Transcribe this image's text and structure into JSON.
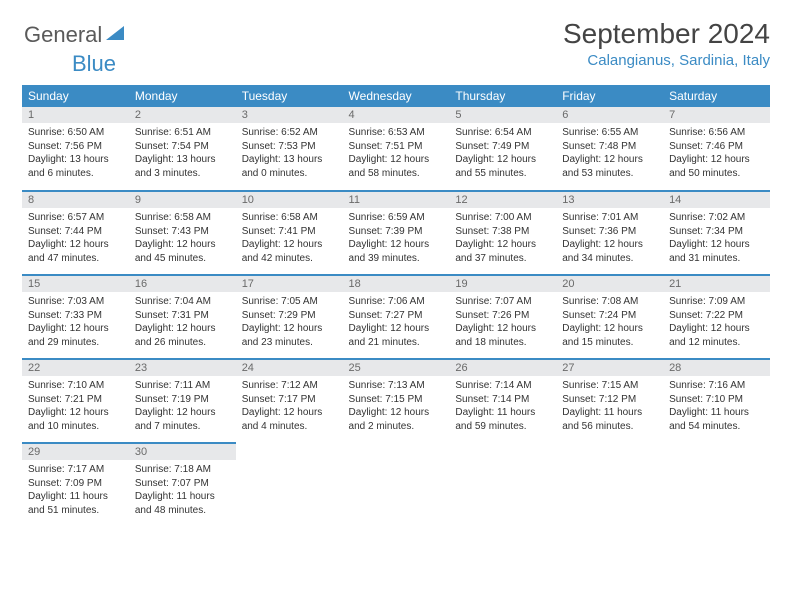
{
  "brand": {
    "general": "General",
    "blue": "Blue"
  },
  "title": "September 2024",
  "location": "Calangianus, Sardinia, Italy",
  "weekdays": [
    "Sunday",
    "Monday",
    "Tuesday",
    "Wednesday",
    "Thursday",
    "Friday",
    "Saturday"
  ],
  "colors": {
    "header_bg": "#3b8bc4",
    "header_text": "#ffffff",
    "daynum_bg": "#e7e8ea",
    "daynum_text": "#6a6a6a",
    "rule": "#3b8bc4",
    "body_text": "#333333",
    "title_text": "#444444",
    "location_text": "#3b8bc4"
  },
  "typography": {
    "title_fontsize": 28,
    "location_fontsize": 15,
    "weekday_fontsize": 12,
    "daynum_fontsize": 11,
    "cell_fontsize": 10
  },
  "days": [
    {
      "n": 1,
      "sunrise": "6:50 AM",
      "sunset": "7:56 PM",
      "daylight": "13 hours and 6 minutes."
    },
    {
      "n": 2,
      "sunrise": "6:51 AM",
      "sunset": "7:54 PM",
      "daylight": "13 hours and 3 minutes."
    },
    {
      "n": 3,
      "sunrise": "6:52 AM",
      "sunset": "7:53 PM",
      "daylight": "13 hours and 0 minutes."
    },
    {
      "n": 4,
      "sunrise": "6:53 AM",
      "sunset": "7:51 PM",
      "daylight": "12 hours and 58 minutes."
    },
    {
      "n": 5,
      "sunrise": "6:54 AM",
      "sunset": "7:49 PM",
      "daylight": "12 hours and 55 minutes."
    },
    {
      "n": 6,
      "sunrise": "6:55 AM",
      "sunset": "7:48 PM",
      "daylight": "12 hours and 53 minutes."
    },
    {
      "n": 7,
      "sunrise": "6:56 AM",
      "sunset": "7:46 PM",
      "daylight": "12 hours and 50 minutes."
    },
    {
      "n": 8,
      "sunrise": "6:57 AM",
      "sunset": "7:44 PM",
      "daylight": "12 hours and 47 minutes."
    },
    {
      "n": 9,
      "sunrise": "6:58 AM",
      "sunset": "7:43 PM",
      "daylight": "12 hours and 45 minutes."
    },
    {
      "n": 10,
      "sunrise": "6:58 AM",
      "sunset": "7:41 PM",
      "daylight": "12 hours and 42 minutes."
    },
    {
      "n": 11,
      "sunrise": "6:59 AM",
      "sunset": "7:39 PM",
      "daylight": "12 hours and 39 minutes."
    },
    {
      "n": 12,
      "sunrise": "7:00 AM",
      "sunset": "7:38 PM",
      "daylight": "12 hours and 37 minutes."
    },
    {
      "n": 13,
      "sunrise": "7:01 AM",
      "sunset": "7:36 PM",
      "daylight": "12 hours and 34 minutes."
    },
    {
      "n": 14,
      "sunrise": "7:02 AM",
      "sunset": "7:34 PM",
      "daylight": "12 hours and 31 minutes."
    },
    {
      "n": 15,
      "sunrise": "7:03 AM",
      "sunset": "7:33 PM",
      "daylight": "12 hours and 29 minutes."
    },
    {
      "n": 16,
      "sunrise": "7:04 AM",
      "sunset": "7:31 PM",
      "daylight": "12 hours and 26 minutes."
    },
    {
      "n": 17,
      "sunrise": "7:05 AM",
      "sunset": "7:29 PM",
      "daylight": "12 hours and 23 minutes."
    },
    {
      "n": 18,
      "sunrise": "7:06 AM",
      "sunset": "7:27 PM",
      "daylight": "12 hours and 21 minutes."
    },
    {
      "n": 19,
      "sunrise": "7:07 AM",
      "sunset": "7:26 PM",
      "daylight": "12 hours and 18 minutes."
    },
    {
      "n": 20,
      "sunrise": "7:08 AM",
      "sunset": "7:24 PM",
      "daylight": "12 hours and 15 minutes."
    },
    {
      "n": 21,
      "sunrise": "7:09 AM",
      "sunset": "7:22 PM",
      "daylight": "12 hours and 12 minutes."
    },
    {
      "n": 22,
      "sunrise": "7:10 AM",
      "sunset": "7:21 PM",
      "daylight": "12 hours and 10 minutes."
    },
    {
      "n": 23,
      "sunrise": "7:11 AM",
      "sunset": "7:19 PM",
      "daylight": "12 hours and 7 minutes."
    },
    {
      "n": 24,
      "sunrise": "7:12 AM",
      "sunset": "7:17 PM",
      "daylight": "12 hours and 4 minutes."
    },
    {
      "n": 25,
      "sunrise": "7:13 AM",
      "sunset": "7:15 PM",
      "daylight": "12 hours and 2 minutes."
    },
    {
      "n": 26,
      "sunrise": "7:14 AM",
      "sunset": "7:14 PM",
      "daylight": "11 hours and 59 minutes."
    },
    {
      "n": 27,
      "sunrise": "7:15 AM",
      "sunset": "7:12 PM",
      "daylight": "11 hours and 56 minutes."
    },
    {
      "n": 28,
      "sunrise": "7:16 AM",
      "sunset": "7:10 PM",
      "daylight": "11 hours and 54 minutes."
    },
    {
      "n": 29,
      "sunrise": "7:17 AM",
      "sunset": "7:09 PM",
      "daylight": "11 hours and 51 minutes."
    },
    {
      "n": 30,
      "sunrise": "7:18 AM",
      "sunset": "7:07 PM",
      "daylight": "11 hours and 48 minutes."
    }
  ]
}
